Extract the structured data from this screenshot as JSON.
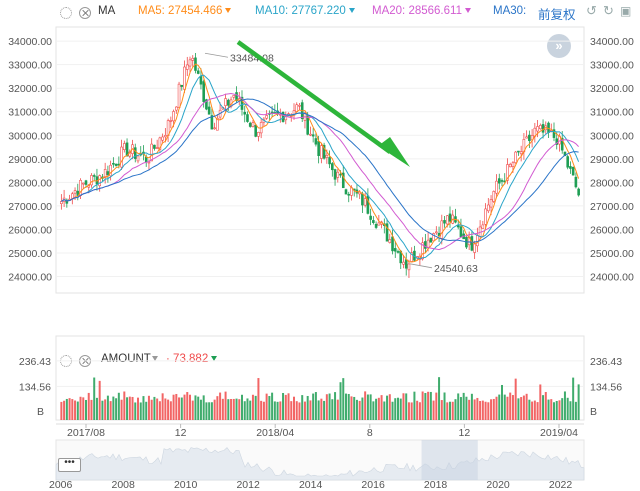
{
  "toolbar": {
    "ma_label": "MA",
    "ma5_label": "MA5:",
    "ma5_value": "27454.466",
    "ma5_color": "#ff8c1a",
    "ma10_label": "MA10:",
    "ma10_value": "27767.220",
    "ma10_color": "#2aa5c9",
    "ma20_label": "MA20:",
    "ma20_value": "28566.611",
    "ma20_color": "#d25bd1",
    "ma30_label": "MA30:",
    "adjust_label": "前复权",
    "adjust_color": "#2a74c8"
  },
  "amount_bar": {
    "label": "AMOUNT",
    "value": "73.882",
    "value_color": "#f04a4a"
  },
  "chart_data": {
    "type": "candlestick",
    "price_axis": {
      "ticks": [
        "34000.00",
        "33000.00",
        "32000.00",
        "31000.00",
        "30000.00",
        "29000.00",
        "28000.00",
        "27000.00",
        "26000.00",
        "25000.00",
        "24000.00"
      ],
      "ylim": [
        23300,
        34600
      ]
    },
    "annotations": [
      {
        "text": "33484.08",
        "y": 33484.08
      },
      {
        "text": "24540.63",
        "y": 24540.63
      }
    ],
    "price_series_anchors": [
      27200,
      27900,
      28400,
      29400,
      29000,
      30500,
      33484,
      30500,
      31700,
      30200,
      30800,
      31200,
      29300,
      28000,
      27200,
      25900,
      24540,
      25600,
      26500,
      25300,
      27500,
      28900,
      30200,
      29900,
      27500
    ],
    "ma_series": [
      {
        "name": "MA5",
        "color": "#ff8c1a"
      },
      {
        "name": "MA10",
        "color": "#2aa5c9"
      },
      {
        "name": "MA20",
        "color": "#d25bd1"
      },
      {
        "name": "MA30",
        "color": "#2a74c8"
      }
    ],
    "amount_axis": {
      "ticks": [
        "236.43",
        "134.56"
      ],
      "unit": "B",
      "ylim": [
        0,
        280
      ]
    },
    "x_axis_ticks": [
      "2017/08",
      "12",
      "2018/04",
      "8",
      "12",
      "2019/04"
    ],
    "navigator": {
      "years": [
        "2006",
        "2008",
        "2010",
        "2012",
        "2014",
        "2016",
        "2018",
        "2020",
        "2022"
      ],
      "year_range": [
        2005.85,
        2022.75
      ],
      "window": [
        2017.55,
        2019.35
      ]
    },
    "colors": {
      "up": "#f04a4a",
      "down": "#1e9e54",
      "arrow": "#2db53a"
    }
  }
}
